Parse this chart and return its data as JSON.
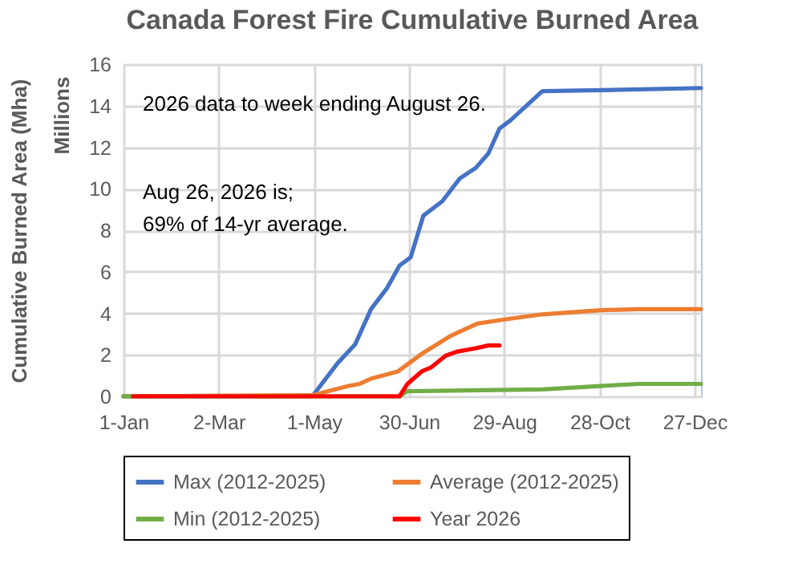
{
  "chart_data": {
    "type": "line",
    "title": "Canada Forest Fire Cumulative Burned Area",
    "ylabel": "Cumulative Burned Area (Mha)",
    "annotations": [
      "2026 data to week ending August 26.",
      "Aug 26, 2026 is;\n69% of 14-yr average.",
      "Millions"
    ],
    "xlim": [
      "--01-01",
      "--12-31"
    ],
    "xticks": [
      {
        "value": "--01-01",
        "label": "1-Jan"
      },
      {
        "value": "--03-02",
        "label": "2-Mar"
      },
      {
        "value": "--05-01",
        "label": "1-May"
      },
      {
        "value": "--06-30",
        "label": "30-Jun"
      },
      {
        "value": "--08-29",
        "label": "29-Aug"
      },
      {
        "value": "--10-28",
        "label": "28-Oct"
      },
      {
        "value": "--12-27",
        "label": "27-Dec"
      }
    ],
    "ylim": [
      0,
      16
    ],
    "yticks": [
      0,
      2,
      4,
      6,
      8,
      10,
      12,
      14,
      16
    ],
    "grid": true,
    "legend": "bottom",
    "series": [
      {
        "name": "Max (2012-2025)",
        "color": "#4472c4",
        "x": [
          "--01-01",
          "--04-30",
          "--05-16",
          "--05-27",
          "--06-06",
          "--06-16",
          "--06-24",
          "--07-01",
          "--07-09",
          "--07-21",
          "--08-01",
          "--08-11",
          "--08-19",
          "--08-26",
          "--09-02",
          "--09-22",
          "--10-29",
          "--12-31"
        ],
        "values": [
          0,
          0,
          1.6,
          2.5,
          4.2,
          5.2,
          6.3,
          6.7,
          8.7,
          9.4,
          10.5,
          11.0,
          11.7,
          12.9,
          13.3,
          14.7,
          14.75,
          14.85
        ]
      },
      {
        "name": "Average (2012-2025)",
        "color": "#ed7d31",
        "x": [
          "--01-01",
          "--04-30",
          "--05-23",
          "--05-30",
          "--06-06",
          "--06-23",
          "--07-09",
          "--07-26",
          "--08-12",
          "--08-29",
          "--09-22",
          "--10-29",
          "--11-22",
          "--12-31"
        ],
        "values": [
          0,
          0.05,
          0.5,
          0.6,
          0.85,
          1.2,
          2.1,
          2.9,
          3.5,
          3.7,
          3.95,
          4.15,
          4.2,
          4.2
        ]
      },
      {
        "name": "Min (2012-2025)",
        "color": "#70ad47",
        "x": [
          "--01-01",
          "--06-24",
          "--06-29",
          "--09-22",
          "--10-29",
          "--11-22",
          "--12-31"
        ],
        "values": [
          0,
          0,
          0.25,
          0.33,
          0.5,
          0.6,
          0.6
        ]
      },
      {
        "name": "Year 2026",
        "color": "#ff0000",
        "x": [
          "--01-07",
          "--06-24",
          "--06-29",
          "--07-08",
          "--07-14",
          "--07-23",
          "--07-30",
          "--08-10",
          "--08-19",
          "--08-26"
        ],
        "values": [
          0,
          0,
          0.6,
          1.2,
          1.4,
          1.95,
          2.15,
          2.3,
          2.45,
          2.45
        ]
      }
    ]
  }
}
